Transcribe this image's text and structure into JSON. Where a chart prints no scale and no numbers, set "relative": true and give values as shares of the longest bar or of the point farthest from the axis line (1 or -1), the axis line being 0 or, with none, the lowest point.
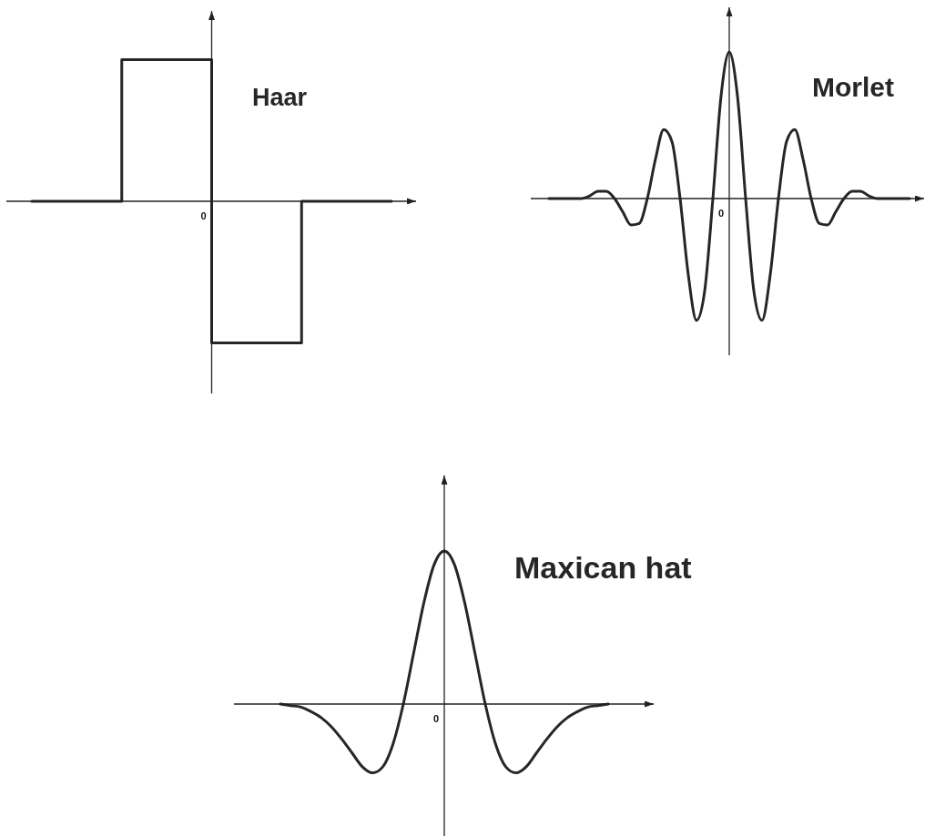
{
  "chart_data": [
    {
      "type": "step",
      "title": "Haar",
      "relative": true,
      "annotations": [
        "0"
      ],
      "categories": [
        null,
        null,
        null,
        null,
        null
      ],
      "values": [
        0,
        1,
        -1,
        0,
        0
      ],
      "color": "#262626"
    },
    {
      "type": "line",
      "title": "Morlet",
      "relative": true,
      "annotations": [
        "0"
      ],
      "categories": [
        null,
        null,
        null,
        null,
        null,
        null,
        null,
        null,
        null,
        null,
        null,
        null,
        null,
        null,
        null,
        null,
        null,
        null,
        null,
        null,
        null,
        null,
        null,
        null,
        null,
        null,
        null,
        null,
        null,
        null,
        null,
        null,
        null,
        null,
        null,
        null,
        null,
        null,
        null,
        null,
        null,
        null,
        null,
        null,
        null
      ],
      "values": [
        0,
        0,
        0,
        0,
        0,
        0.02,
        0.05,
        0.05,
        0,
        -0.09,
        -0.18,
        -0.17,
        0,
        0.27,
        0.47,
        0.39,
        0,
        -0.52,
        -0.83,
        -0.63,
        0,
        0.7,
        1,
        0.7,
        0,
        -0.63,
        -0.83,
        -0.52,
        0,
        0.39,
        0.47,
        0.27,
        0,
        -0.17,
        -0.18,
        -0.09,
        0,
        0.05,
        0.05,
        0.02,
        0,
        0,
        0,
        0,
        0
      ],
      "color": "#262626"
    },
    {
      "type": "line",
      "title": "Maxican hat",
      "relative": true,
      "annotations": [
        "0"
      ],
      "categories": [
        null,
        null,
        null,
        null,
        null,
        null,
        null,
        null,
        null,
        null,
        null,
        null,
        null,
        null,
        null,
        null,
        null,
        null,
        null,
        null,
        null,
        null,
        null,
        null,
        null,
        null,
        null,
        null,
        null,
        null,
        null,
        null,
        null
      ],
      "values": [
        0,
        -0.01,
        -0.02,
        -0.05,
        -0.09,
        -0.15,
        -0.23,
        -0.32,
        -0.41,
        -0.45,
        -0.41,
        -0.26,
        0,
        0.33,
        0.66,
        0.91,
        1,
        0.91,
        0.66,
        0.33,
        0,
        -0.26,
        -0.41,
        -0.45,
        -0.41,
        -0.32,
        -0.23,
        -0.15,
        -0.09,
        -0.05,
        -0.02,
        -0.01,
        0
      ],
      "color": "#262626"
    }
  ]
}
